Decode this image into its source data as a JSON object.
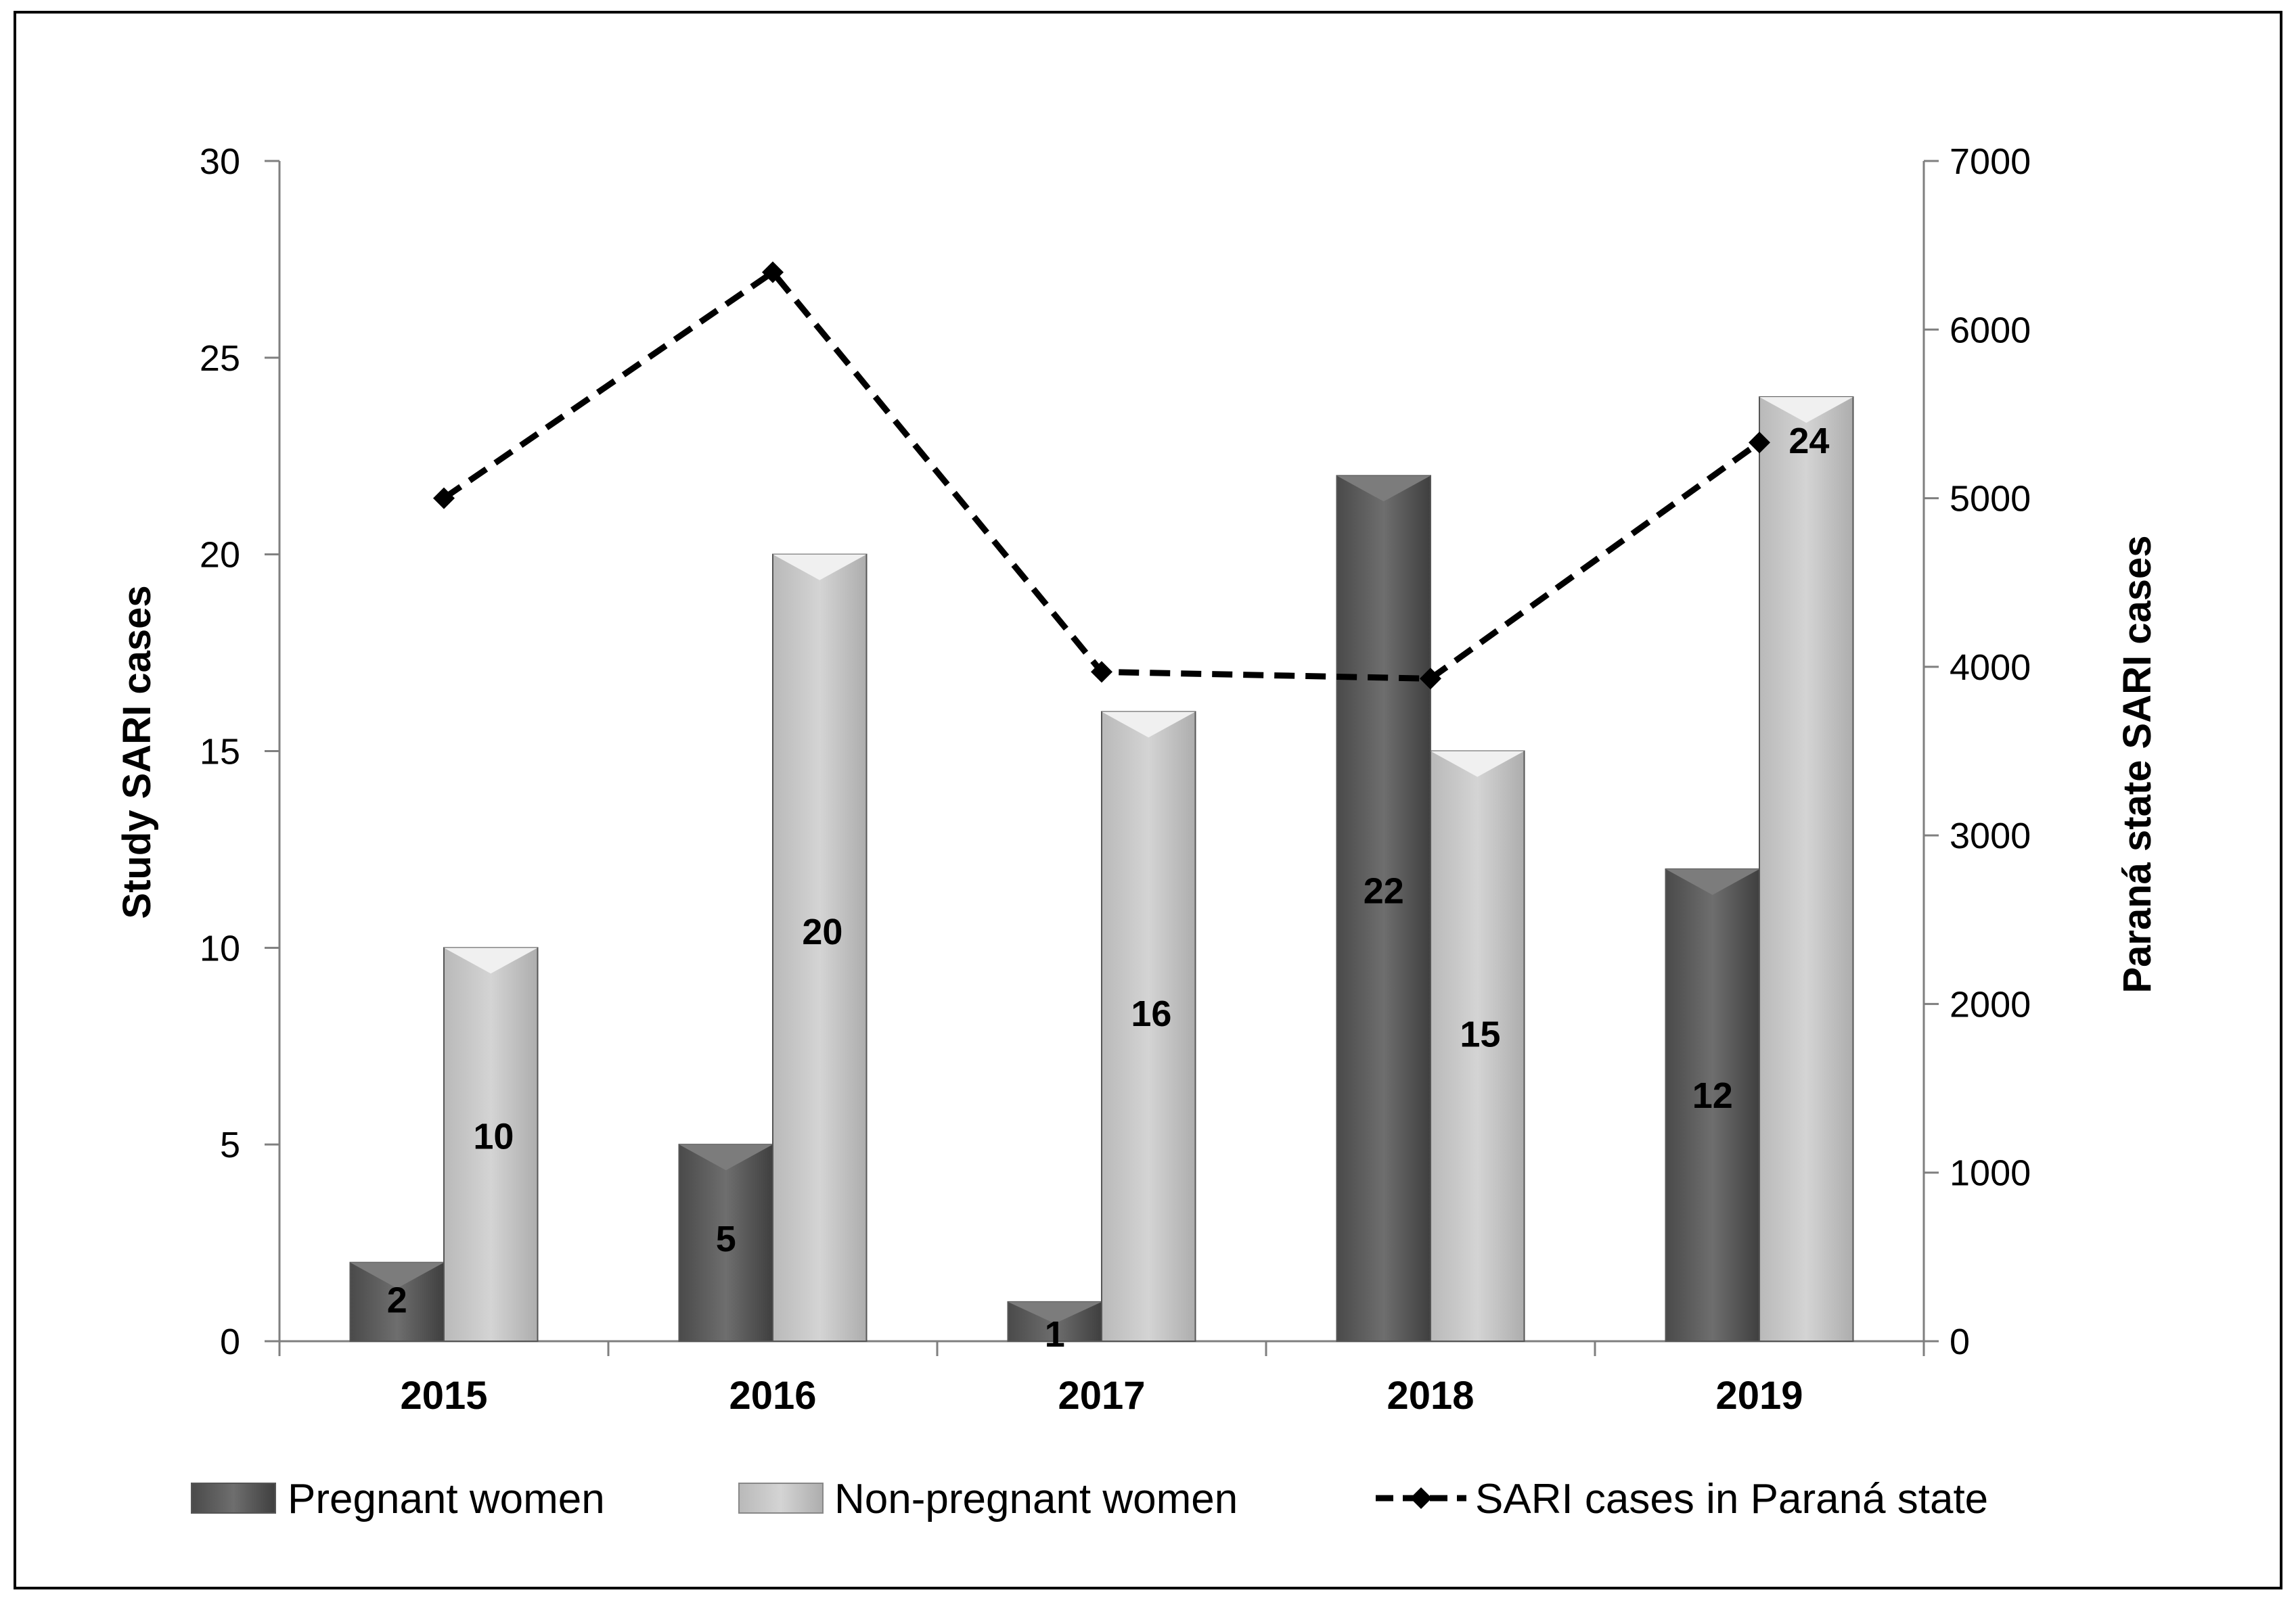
{
  "chart_data": {
    "type": "bar",
    "categories": [
      "2015",
      "2016",
      "2017",
      "2018",
      "2019"
    ],
    "series": [
      {
        "name": "Pregnant women",
        "type": "bar",
        "axis": "left",
        "values": [
          2,
          5,
          1,
          22,
          12
        ],
        "color": "#5a5a5a"
      },
      {
        "name": "Non-pregnant women",
        "type": "bar",
        "axis": "left",
        "values": [
          10,
          20,
          16,
          15,
          24
        ],
        "color": "#c8c8c8"
      },
      {
        "name": "SARI cases in  Paraná state",
        "type": "line",
        "axis": "right",
        "style": "dashed",
        "marker": "diamond",
        "values": [
          5000,
          6340,
          3970,
          3930,
          5330
        ],
        "color": "#000000"
      }
    ],
    "ylabel": "Study SARI cases",
    "y2label": "Paraná state SARI cases",
    "ylim": [
      0,
      30
    ],
    "y2lim": [
      0,
      7000
    ],
    "yticks": [
      "0",
      "5",
      "10",
      "15",
      "20",
      "25",
      "30"
    ],
    "y2ticks": [
      "0",
      "1000",
      "2000",
      "3000",
      "4000",
      "5000",
      "6000",
      "7000"
    ],
    "legend": {
      "position": "bottom"
    },
    "grid": false
  }
}
